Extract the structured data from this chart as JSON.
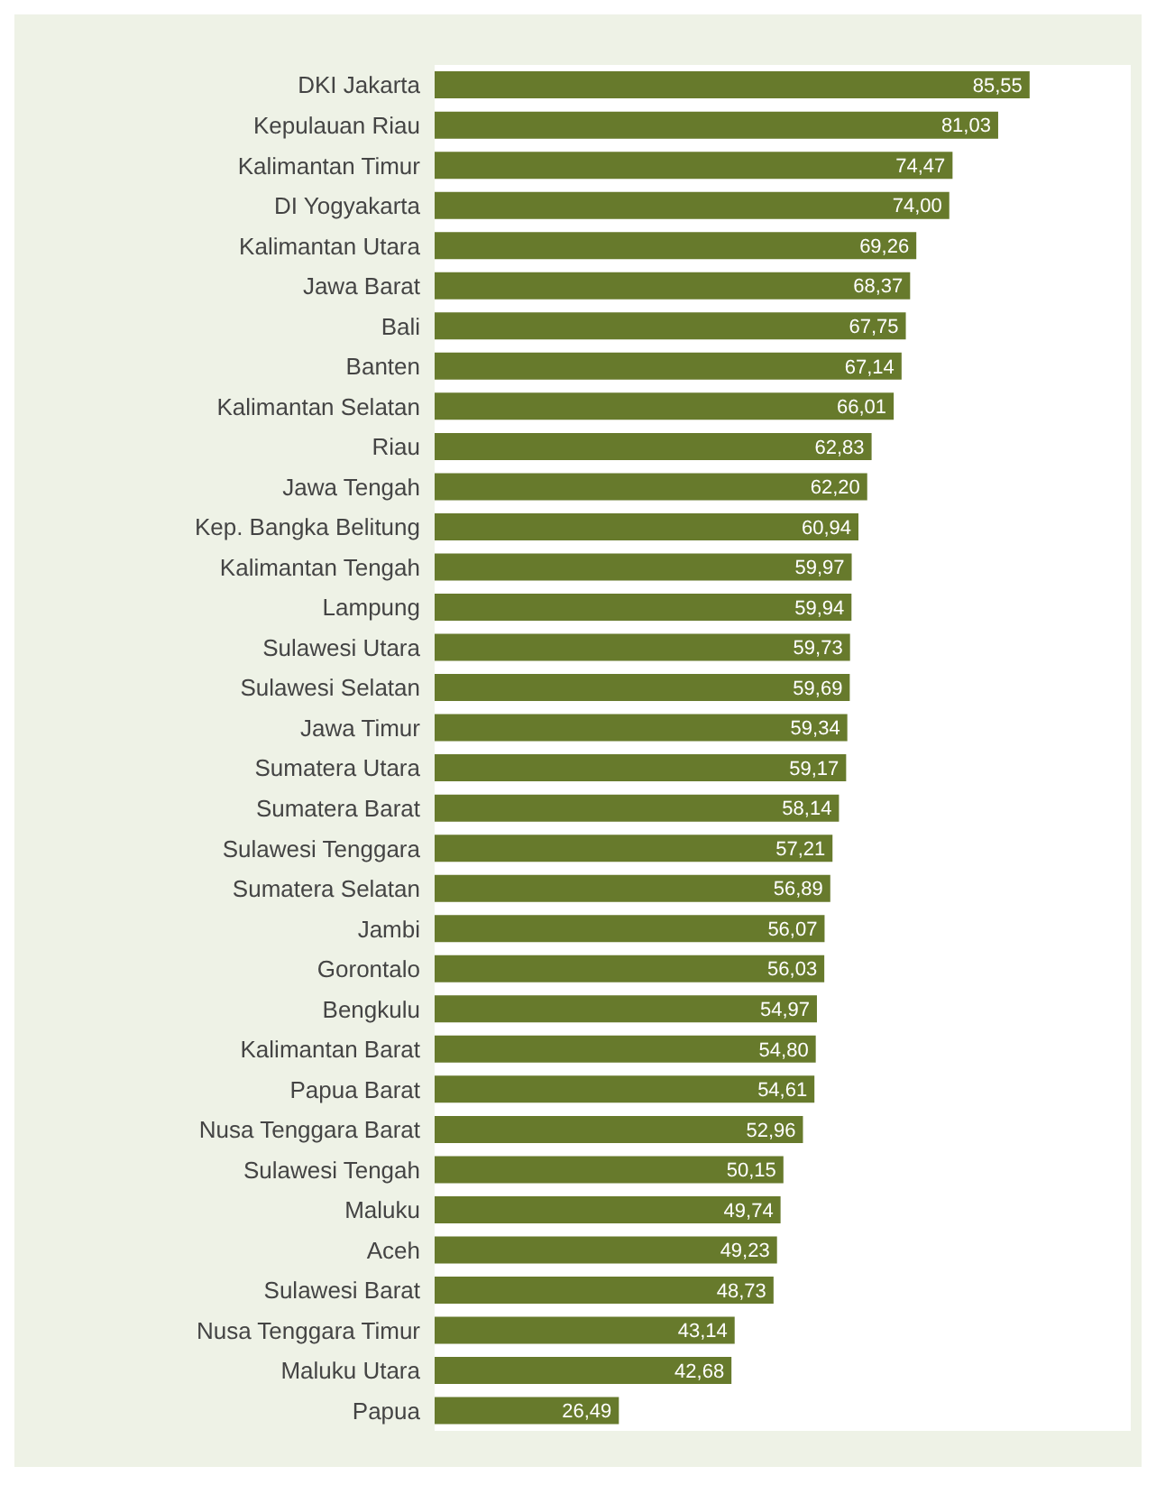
{
  "chart_data": {
    "type": "bar",
    "orientation": "horizontal",
    "categories": [
      "DKI Jakarta",
      "Kepulauan Riau",
      "Kalimantan Timur",
      "DI Yogyakarta",
      "Kalimantan Utara",
      "Jawa Barat",
      "Bali",
      "Banten",
      "Kalimantan Selatan",
      "Riau",
      "Jawa Tengah",
      "Kep. Bangka Belitung",
      "Kalimantan Tengah",
      "Lampung",
      "Sulawesi Utara",
      "Sulawesi Selatan",
      "Jawa Timur",
      "Sumatera Utara",
      "Sumatera Barat",
      "Sulawesi Tenggara",
      "Sumatera Selatan",
      "Jambi",
      "Gorontalo",
      "Bengkulu",
      "Kalimantan Barat",
      "Papua Barat",
      "Nusa Tenggara Barat",
      "Sulawesi Tengah",
      "Maluku",
      "Aceh",
      "Sulawesi Barat",
      "Nusa Tenggara Timur",
      "Maluku Utara",
      "Papua"
    ],
    "values": [
      85.55,
      81.03,
      74.47,
      74.0,
      69.26,
      68.37,
      67.75,
      67.14,
      66.01,
      62.83,
      62.2,
      60.94,
      59.97,
      59.94,
      59.73,
      59.69,
      59.34,
      59.17,
      58.14,
      57.21,
      56.89,
      56.07,
      56.03,
      54.97,
      54.8,
      54.61,
      52.96,
      50.15,
      49.74,
      49.23,
      48.73,
      43.14,
      42.68,
      26.49
    ],
    "value_labels": [
      "85,55",
      "81,03",
      "74,47",
      "74,00",
      "69,26",
      "68,37",
      "67,75",
      "67,14",
      "66,01",
      "62,83",
      "62,20",
      "60,94",
      "59,97",
      "59,94",
      "59,73",
      "59,69",
      "59,34",
      "59,17",
      "58,14",
      "57,21",
      "56,89",
      "56,07",
      "56,03",
      "54,97",
      "54,80",
      "54,61",
      "52,96",
      "50,15",
      "49,74",
      "49,23",
      "48,73",
      "43,14",
      "42,68",
      "26,49"
    ],
    "color": "#677a2c"
  }
}
